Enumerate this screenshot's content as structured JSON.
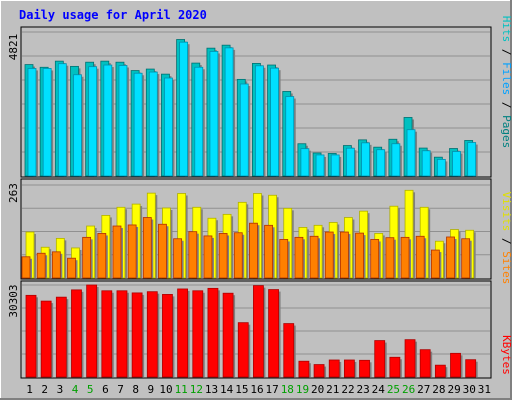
{
  "chart_data": [
    {
      "type": "bar",
      "title": "Daily usage for April 2020",
      "categories": [
        "1",
        "2",
        "3",
        "4",
        "5",
        "6",
        "7",
        "8",
        "9",
        "10",
        "11",
        "12",
        "13",
        "14",
        "15",
        "16",
        "17",
        "18",
        "19",
        "20",
        "21",
        "22",
        "23",
        "24",
        "25",
        "26",
        "27",
        "28",
        "29",
        "30",
        "31"
      ],
      "weekend_days": [
        "4",
        "5",
        "11",
        "12",
        "18",
        "19",
        "25",
        "26"
      ],
      "ylabel": "Pages / Files / Hits",
      "ytick": "4821",
      "ylim": [
        0,
        4821
      ],
      "series": [
        {
          "name": "Hits",
          "color": "#00c0c0",
          "values": [
            3730,
            3640,
            3845,
            3670,
            3810,
            3845,
            3810,
            3530,
            3580,
            3410,
            4570,
            3780,
            4280,
            4380,
            3235,
            3770,
            3715,
            2830,
            1080,
            770,
            755,
            1020,
            1210,
            965,
            1230,
            1960,
            935,
            630,
            920,
            1190,
            0
          ]
        },
        {
          "name": "Files",
          "color": "#00e0ff",
          "values": [
            3600,
            3600,
            3760,
            3390,
            3660,
            3715,
            3700,
            3440,
            3480,
            3280,
            4480,
            3640,
            4170,
            4290,
            3080,
            3690,
            3610,
            2660,
            915,
            705,
            705,
            930,
            1110,
            880,
            1080,
            1550,
            845,
            555,
            820,
            1120,
            0
          ]
        },
        {
          "name": "Pages",
          "color": "#008080",
          "values": [
            0,
            0,
            0,
            0,
            0,
            0,
            0,
            0,
            0,
            0,
            0,
            0,
            0,
            0,
            0,
            0,
            0,
            0,
            0,
            0,
            0,
            0,
            0,
            0,
            0,
            0,
            0,
            0,
            0,
            0,
            0
          ]
        }
      ]
    },
    {
      "type": "bar",
      "ylabel": "Sites / Visits",
      "ytick": "263",
      "ylim": [
        0,
        263
      ],
      "series": [
        {
          "name": "Visits",
          "color": "#ffff00",
          "values": [
            130,
            87,
            112,
            85,
            147,
            177,
            200,
            209,
            240,
            198,
            239,
            200,
            169,
            180,
            214,
            239,
            234,
            197,
            143,
            149,
            157,
            171,
            189,
            126,
            203,
            248,
            200,
            104,
            137,
            135,
            0
          ]
        },
        {
          "name": "Sites",
          "color": "#ff8000",
          "values": [
            60,
            70,
            74,
            56,
            115,
            126,
            147,
            150,
            171,
            152,
            111,
            131,
            119,
            126,
            128,
            155,
            149,
            109,
            115,
            118,
            130,
            130,
            127,
            109,
            114,
            115,
            118,
            79,
            116,
            111,
            0
          ]
        }
      ]
    },
    {
      "type": "bar",
      "ylabel": "KBytes",
      "ytick": "30303",
      "ylim": [
        0,
        30303
      ],
      "series": [
        {
          "name": "KBytes",
          "color": "#ff0000",
          "values": [
            26900,
            25000,
            26300,
            28700,
            30303,
            28400,
            28400,
            27700,
            28100,
            27200,
            29000,
            28400,
            29200,
            27600,
            17900,
            30100,
            28800,
            17600,
            5200,
            4100,
            5600,
            5600,
            5500,
            12000,
            6500,
            12300,
            9000,
            3900,
            7800,
            5700,
            0
          ]
        }
      ]
    }
  ]
}
